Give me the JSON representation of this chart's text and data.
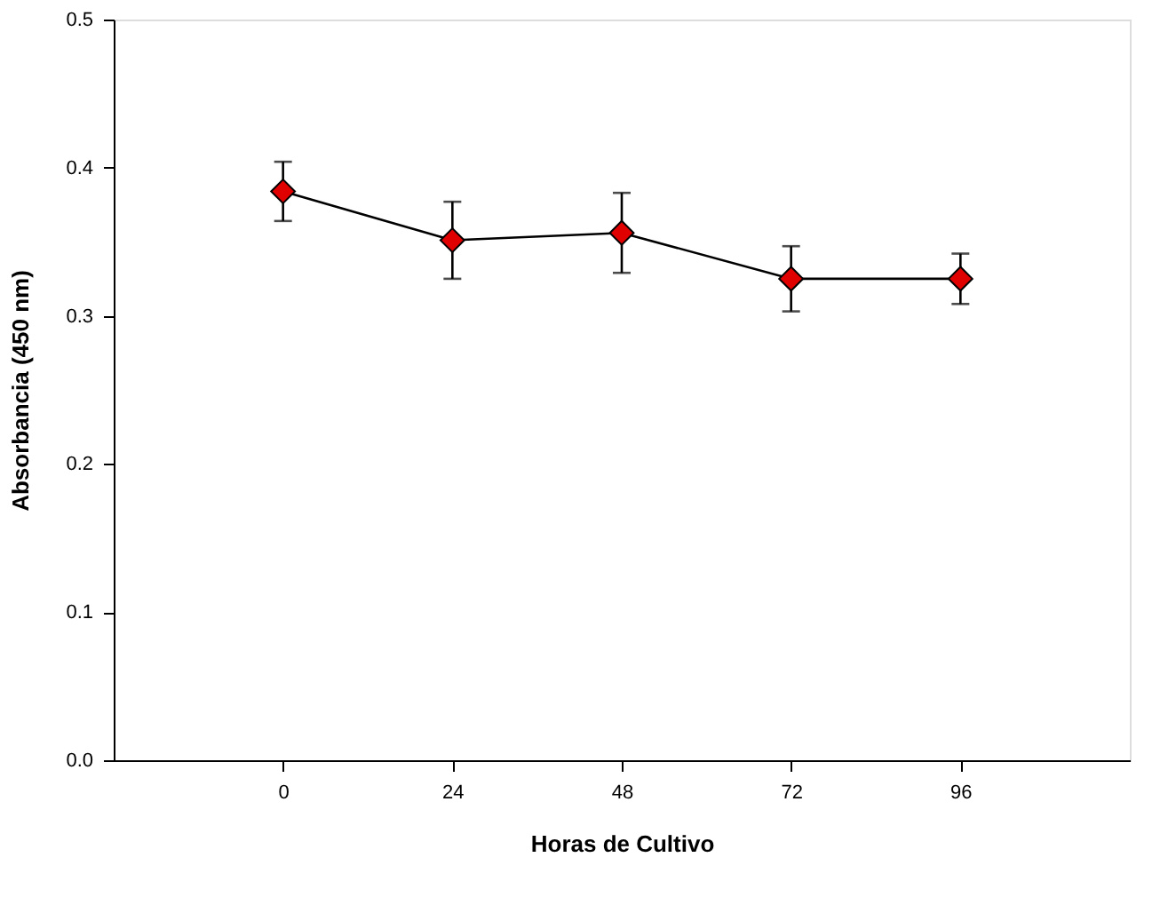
{
  "chart_data": {
    "type": "line",
    "xlabel": "Horas de Cultivo",
    "ylabel": "Absorbancia (450 nm)",
    "x": [
      0,
      24,
      48,
      72,
      96
    ],
    "series": [
      {
        "color": "#e00000",
        "values": [
          0.384,
          0.351,
          0.356,
          0.325,
          0.325
        ],
        "errors": [
          0.02,
          0.026,
          0.027,
          0.022,
          0.017
        ]
      }
    ],
    "xlim": [
      -24,
      120
    ],
    "xticks": [
      0,
      24,
      48,
      72,
      96
    ],
    "ylim": [
      0,
      0.5
    ],
    "yticks": [
      {
        "value": 0,
        "label": "0.0"
      },
      0.1,
      0.2,
      0.3,
      0.4,
      0.5
    ],
    "grid": false,
    "marker": "diamond",
    "line_style": "solid"
  }
}
